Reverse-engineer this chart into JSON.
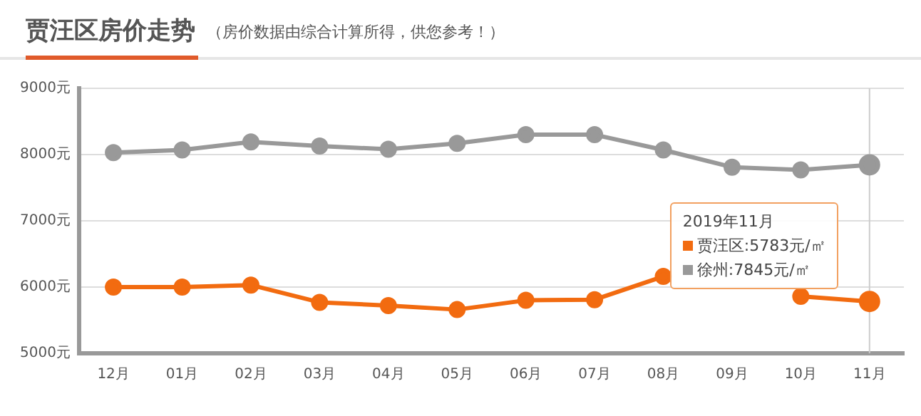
{
  "chart_data": {
    "type": "line",
    "title": "贾汪区房价走势",
    "subtitle": "（房价数据由综合计算所得，供您参考！）",
    "categories": [
      "12月",
      "01月",
      "02月",
      "03月",
      "04月",
      "05月",
      "06月",
      "07月",
      "08月",
      "09月",
      "10月",
      "11月"
    ],
    "series": [
      {
        "name": "贾汪区",
        "color": "#f26b10",
        "values": [
          6000,
          6000,
          6030,
          5770,
          5720,
          5660,
          5800,
          5810,
          6160,
          null,
          5860,
          5783
        ],
        "value_labels": [
          null,
          null,
          null,
          null,
          null,
          null,
          null,
          null,
          null,
          null,
          null,
          ":5783元/㎡"
        ]
      },
      {
        "name": "徐州",
        "color": "#999999",
        "values": [
          8030,
          8070,
          8190,
          8130,
          8080,
          8170,
          8300,
          8300,
          8070,
          7810,
          7770,
          7845
        ],
        "value_labels": [
          null,
          null,
          null,
          null,
          null,
          null,
          null,
          null,
          null,
          null,
          null,
          ":7845元/㎡"
        ]
      }
    ],
    "annotations": [
      "2019年11月"
    ],
    "ref_lines": [
      {
        "axis": "x",
        "value": "11月",
        "color": "#cccccc"
      }
    ],
    "ylim": [
      5000,
      9000
    ],
    "yticks": [
      {
        "value": 5000,
        "label": "5000元"
      },
      {
        "value": 6000,
        "label": "6000元"
      },
      {
        "value": 7000,
        "label": "7000元"
      },
      {
        "value": 8000,
        "label": "8000元"
      },
      {
        "value": 9000,
        "label": "9000元"
      }
    ],
    "grid": "y",
    "marker": "circle",
    "line_style": "solid"
  }
}
